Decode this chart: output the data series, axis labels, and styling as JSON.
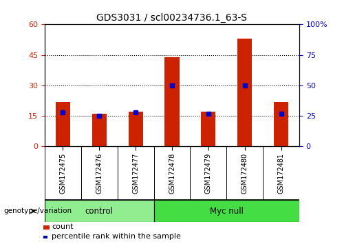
{
  "title": "GDS3031 / scl00234736.1_63-S",
  "samples": [
    "GSM172475",
    "GSM172476",
    "GSM172477",
    "GSM172478",
    "GSM172479",
    "GSM172480",
    "GSM172481"
  ],
  "counts": [
    22,
    16,
    17,
    44,
    17,
    53,
    22
  ],
  "percentiles": [
    28,
    25,
    28,
    50,
    27,
    50,
    27
  ],
  "groups": [
    {
      "label": "control",
      "start": 0,
      "end": 3,
      "color": "#90EE90"
    },
    {
      "label": "Myc null",
      "start": 3,
      "end": 7,
      "color": "#44DD44"
    }
  ],
  "left_ylim": [
    0,
    60
  ],
  "right_ylim": [
    0,
    100
  ],
  "left_yticks": [
    0,
    15,
    30,
    45,
    60
  ],
  "right_yticks": [
    0,
    25,
    50,
    75,
    100
  ],
  "right_yticklabels": [
    "0",
    "25",
    "50",
    "75",
    "100%"
  ],
  "bar_color": "#CC2200",
  "dot_color": "#0000CC",
  "bg_color": "#BBBBBB",
  "legend_count_label": "count",
  "legend_pct_label": "percentile rank within the sample",
  "genotype_label": "genotype/variation"
}
